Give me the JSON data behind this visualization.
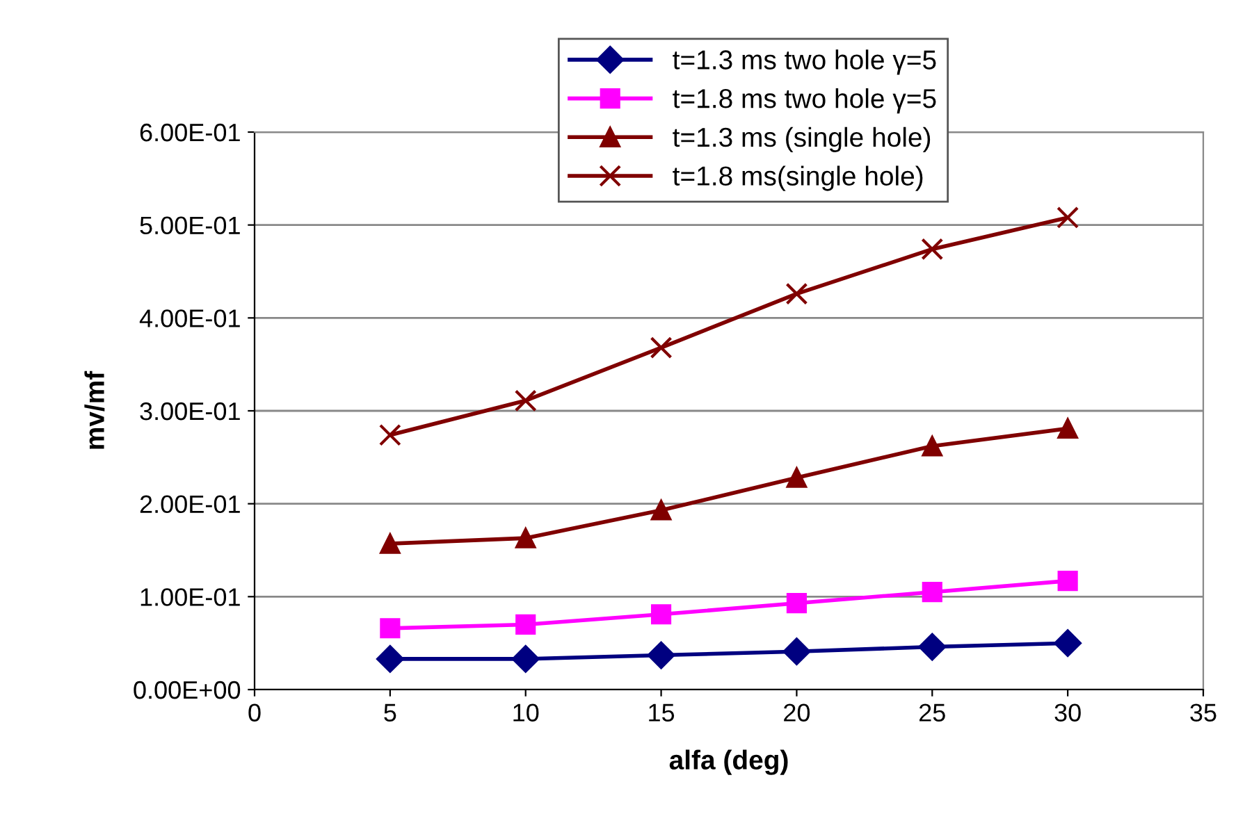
{
  "chart_data": {
    "type": "line",
    "xlabel": "alfa (deg)",
    "ylabel": "mv/mf",
    "x": [
      5,
      10,
      15,
      20,
      25,
      30
    ],
    "series": [
      {
        "name": "t=1.3 ms two hole γ=5",
        "color": "#000080",
        "marker": "diamond",
        "values": [
          0.033,
          0.033,
          0.037,
          0.041,
          0.046,
          0.05
        ]
      },
      {
        "name": "t=1.8 ms two hole γ=5",
        "color": "#ff00ff",
        "marker": "square",
        "values": [
          0.066,
          0.07,
          0.081,
          0.093,
          0.105,
          0.117
        ]
      },
      {
        "name": "t=1.3 ms (single hole)",
        "color": "#800000",
        "marker": "triangle",
        "values": [
          0.157,
          0.163,
          0.193,
          0.228,
          0.262,
          0.281
        ]
      },
      {
        "name": "t=1.8 ms(single hole)",
        "color": "#800000",
        "marker": "cross",
        "values": [
          0.274,
          0.311,
          0.368,
          0.426,
          0.474,
          0.508
        ]
      }
    ],
    "xlim": [
      0,
      35
    ],
    "xticks": [
      0,
      5,
      10,
      15,
      20,
      25,
      30,
      35
    ],
    "ylim": [
      0,
      0.6
    ],
    "yticks": [
      {
        "value": 0,
        "label": "0.00E+00"
      },
      {
        "value": 0.1,
        "label": "1.00E-01"
      },
      {
        "value": 0.2,
        "label": "2.00E-01"
      },
      {
        "value": 0.3,
        "label": "3.00E-01"
      },
      {
        "value": 0.4,
        "label": "4.00E-01"
      },
      {
        "value": 0.5,
        "label": "5.00E-01"
      },
      {
        "value": 0.6,
        "label": "6.00E-01"
      }
    ],
    "grid": "y",
    "legend": "top",
    "line_style": "solid"
  }
}
